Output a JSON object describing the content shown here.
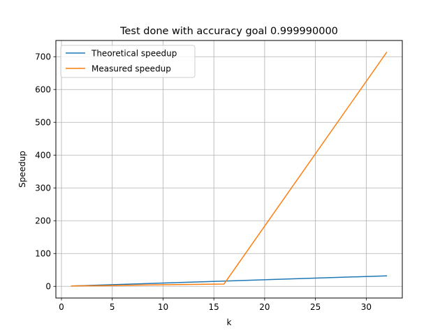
{
  "chart_data": {
    "type": "line",
    "title": "Test done with accuracy goal 0.999990000",
    "xlabel": "k",
    "ylabel": "Speedup",
    "xlim": [
      -0.55,
      33.55
    ],
    "ylim": [
      -35.6,
      749.4
    ],
    "xticks": [
      0,
      5,
      10,
      15,
      20,
      25,
      30
    ],
    "yticks": [
      0,
      100,
      200,
      300,
      400,
      500,
      600,
      700
    ],
    "grid": true,
    "legend_position": "upper-left",
    "series": [
      {
        "name": "Theoretical speedup",
        "color": "#1f77b4",
        "x": [
          1,
          2,
          4,
          8,
          16,
          32
        ],
        "y": [
          1,
          2,
          4,
          8,
          16,
          32
        ]
      },
      {
        "name": "Measured speedup",
        "color": "#ff7f0e",
        "x": [
          1,
          2,
          4,
          8,
          16,
          32
        ],
        "y": [
          1,
          1.5,
          2,
          4,
          7,
          713
        ]
      }
    ]
  }
}
